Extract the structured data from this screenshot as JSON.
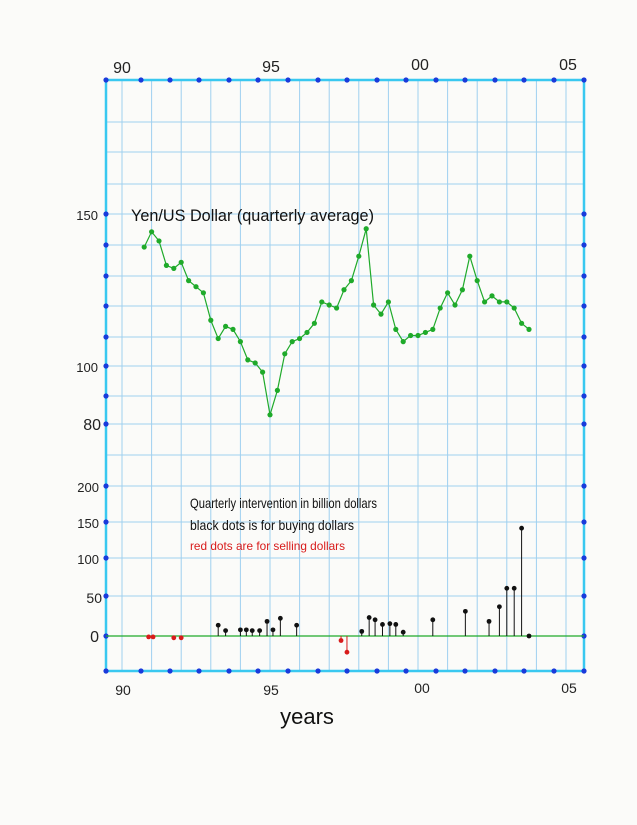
{
  "chart_data": [
    {
      "type": "line",
      "title": "Yen/US Dollar (quarterly average)",
      "x_unit": "year",
      "x_ticks": [
        "90",
        "95",
        "00",
        "05"
      ],
      "x_tick_values": [
        1990,
        1995,
        2000,
        2005
      ],
      "y_ticks": [
        "150",
        "100",
        "80"
      ],
      "y_tick_values": [
        150,
        100,
        80
      ],
      "xlim": [
        1989.5,
        2005.5
      ],
      "color": "#1faa2a",
      "series": [
        {
          "x": [
            1990.75,
            1991,
            1991.25,
            1991.5,
            1991.75,
            1992,
            1992.25,
            1992.5,
            1992.75,
            1993,
            1993.25,
            1993.5,
            1993.75,
            1994,
            1994.25,
            1994.5,
            1994.75,
            1995,
            1995.25,
            1995.5,
            1995.75,
            1996,
            1996.25,
            1996.5,
            1996.75,
            1997,
            1997.25,
            1997.5,
            1997.75,
            1998,
            1998.25,
            1998.5,
            1998.75,
            1999,
            1999.25,
            1999.5,
            1999.75,
            2000,
            2000.25,
            2000.5,
            2000.75,
            2001,
            2001.25,
            2001.5,
            2001.75,
            2002,
            2002.25,
            2002.5,
            2002.75,
            2003,
            2003.25,
            2003.5,
            2003.75
          ],
          "y": [
            139,
            144,
            141,
            133,
            132,
            134,
            128,
            126,
            124,
            115,
            109,
            113,
            112,
            108,
            102,
            101,
            98,
            84,
            92,
            104,
            108,
            109,
            111,
            114,
            121,
            120,
            119,
            125,
            128,
            136,
            145,
            120,
            117,
            121,
            112,
            108,
            110,
            110,
            111,
            112,
            119,
            124,
            120,
            125,
            136,
            128,
            121,
            123,
            121,
            121,
            119,
            114,
            112
          ]
        }
      ]
    },
    {
      "type": "scatter",
      "title": "Quarterly intervention in billion dollars",
      "annotations": [
        "black dots is for buying dollars",
        "red dots are for selling dollars"
      ],
      "xlabel": "years",
      "x_ticks": [
        "90",
        "95",
        "00",
        "05"
      ],
      "x_tick_values": [
        1990,
        1995,
        2000,
        2005
      ],
      "y_ticks": [
        "200",
        "150",
        "100",
        "50",
        "0"
      ],
      "y_tick_values": [
        200,
        150,
        100,
        50,
        0
      ],
      "xlim": [
        1989.5,
        2005.5
      ],
      "zero_line_color": "#1faa2a",
      "series": [
        {
          "color": "#d81b1b",
          "x": [
            1990.9,
            1991.05,
            1991.75,
            1992,
            1997.4,
            1997.6
          ],
          "y": [
            -1,
            -1,
            -2,
            -2,
            -5,
            -18
          ]
        },
        {
          "color": "#111111",
          "x": [
            1993.25,
            1993.5,
            1994,
            1994.2,
            1994.4,
            1994.65,
            1994.9,
            1995.1,
            1995.35,
            1995.9,
            1998.1,
            1998.35,
            1998.55,
            1998.8,
            1999.05,
            1999.25,
            1999.5,
            2000.5,
            2001.6,
            2002.4,
            2002.75,
            2003,
            2003.25,
            2003.5,
            2003.75
          ],
          "y": [
            14,
            7,
            8,
            8,
            7,
            7,
            19,
            8,
            23,
            14,
            6,
            24,
            21,
            15,
            16,
            15,
            5,
            21,
            32,
            19,
            38,
            62,
            62,
            140,
            0
          ]
        }
      ]
    }
  ]
}
